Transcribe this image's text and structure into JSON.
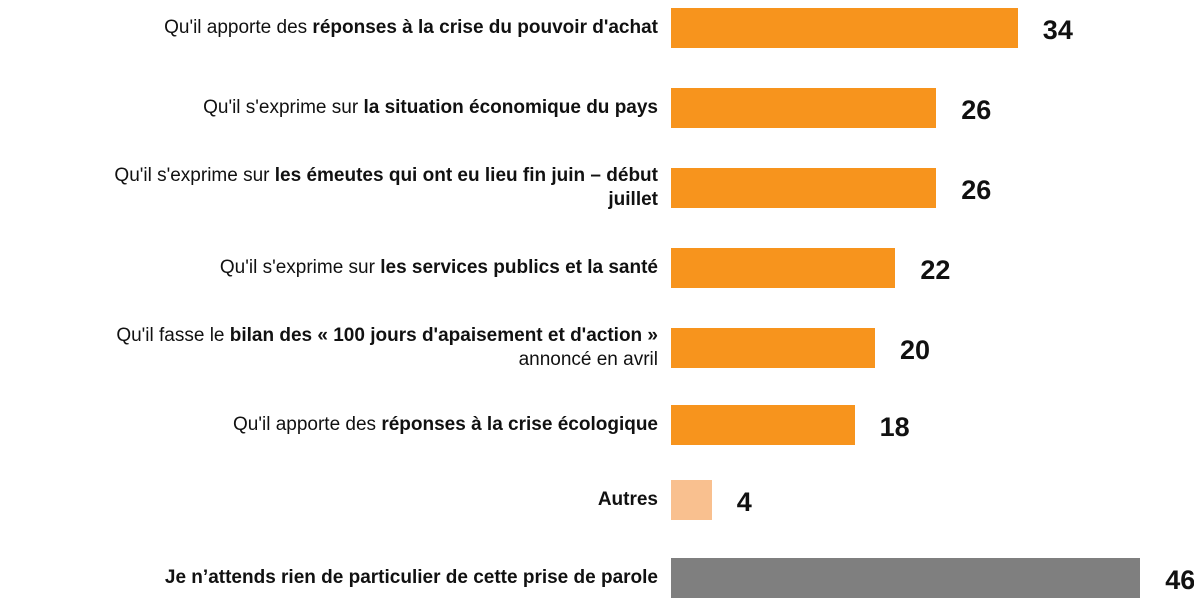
{
  "chart_data": {
    "type": "bar",
    "orientation": "horizontal",
    "categories": [
      [
        {
          "text": "Qu'il apporte des ",
          "bold": false
        },
        {
          "text": "réponses à la crise du pouvoir d'achat",
          "bold": true
        }
      ],
      [
        {
          "text": "Qu'il s'exprime sur ",
          "bold": false
        },
        {
          "text": "la situation économique du pays",
          "bold": true
        }
      ],
      [
        {
          "text": "Qu'il s'exprime sur ",
          "bold": false
        },
        {
          "text": "les émeutes qui ont eu lieu fin juin – début juillet",
          "bold": true
        }
      ],
      [
        {
          "text": "Qu'il s'exprime sur ",
          "bold": false
        },
        {
          "text": "les services publics et la santé",
          "bold": true
        }
      ],
      [
        {
          "text": "Qu'il fasse le ",
          "bold": false
        },
        {
          "text": "bilan des « 100 jours d'apaisement et d'action »",
          "bold": true
        },
        {
          "text": " annoncé en avril",
          "bold": false
        }
      ],
      [
        {
          "text": "Qu'il apporte des ",
          "bold": false
        },
        {
          "text": "réponses à la crise écologique",
          "bold": true
        }
      ],
      [
        {
          "text": "Autres",
          "bold": true
        }
      ],
      [
        {
          "text": "Je n’attends rien de particulier de cette prise de parole",
          "bold": true
        }
      ]
    ],
    "values": [
      34,
      26,
      26,
      22,
      20,
      18,
      4,
      46
    ],
    "colors": [
      "#f7941d",
      "#f7941d",
      "#f7941d",
      "#f7941d",
      "#f7941d",
      "#f7941d",
      "#f9c08f",
      "#7f7f7f"
    ],
    "xlim": [
      0,
      50
    ]
  }
}
